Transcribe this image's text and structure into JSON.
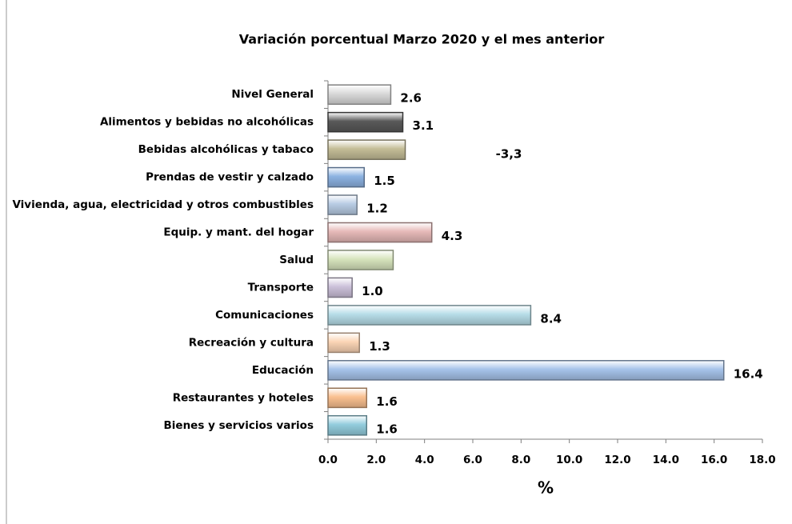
{
  "chart_data": {
    "type": "bar",
    "orientation": "horizontal",
    "title": "Variación porcentual  Marzo 2020  y el mes anterior",
    "xlabel": "%",
    "annotation": "-3,3",
    "categories": [
      "Nivel General",
      "Alimentos y bebidas no alcohólicas",
      "Bebidas alcohólicas y tabaco",
      "Prendas de vestir y calzado",
      "Vivienda, agua, electricidad y otros combustibles",
      "Equip. y mant. del hogar",
      "Salud",
      "Transporte",
      "Comunicaciones",
      "Recreación y cultura",
      "Educación",
      "Restaurantes y hoteles",
      "Bienes y servicios varios"
    ],
    "values": [
      2.6,
      3.1,
      3.2,
      1.5,
      1.2,
      4.3,
      2.7,
      1.0,
      8.4,
      1.3,
      16.4,
      1.6,
      1.6
    ],
    "value_labels": [
      "2.6",
      "3.1",
      null,
      "1.5",
      "1.2",
      "4.3",
      null,
      "1.0",
      "8.4",
      "1.3",
      "16.4",
      "1.6",
      "1.6"
    ],
    "colors": [
      "#d9d9d9",
      "#595959",
      "#c4bd97",
      "#8db3e2",
      "#b8cce4",
      "#e6b9b8",
      "#d7e4bd",
      "#ccc1da",
      "#b7dde8",
      "#fbd5b5",
      "#a6c3ea",
      "#fac090",
      "#93cddd"
    ],
    "xlim": [
      0,
      18
    ],
    "xticks": [
      {
        "value": 0,
        "label": "0.0"
      },
      {
        "value": 2,
        "label": "2.0"
      },
      {
        "value": 4,
        "label": "4.0"
      },
      {
        "value": 6,
        "label": "6.0"
      },
      {
        "value": 8,
        "label": "8.0"
      },
      {
        "value": 10,
        "label": "10.0"
      },
      {
        "value": 12,
        "label": "12.0"
      },
      {
        "value": 14,
        "label": "14.0"
      },
      {
        "value": 16,
        "label": "16.0"
      },
      {
        "value": 18,
        "label": "18.0"
      }
    ],
    "grid": false
  }
}
